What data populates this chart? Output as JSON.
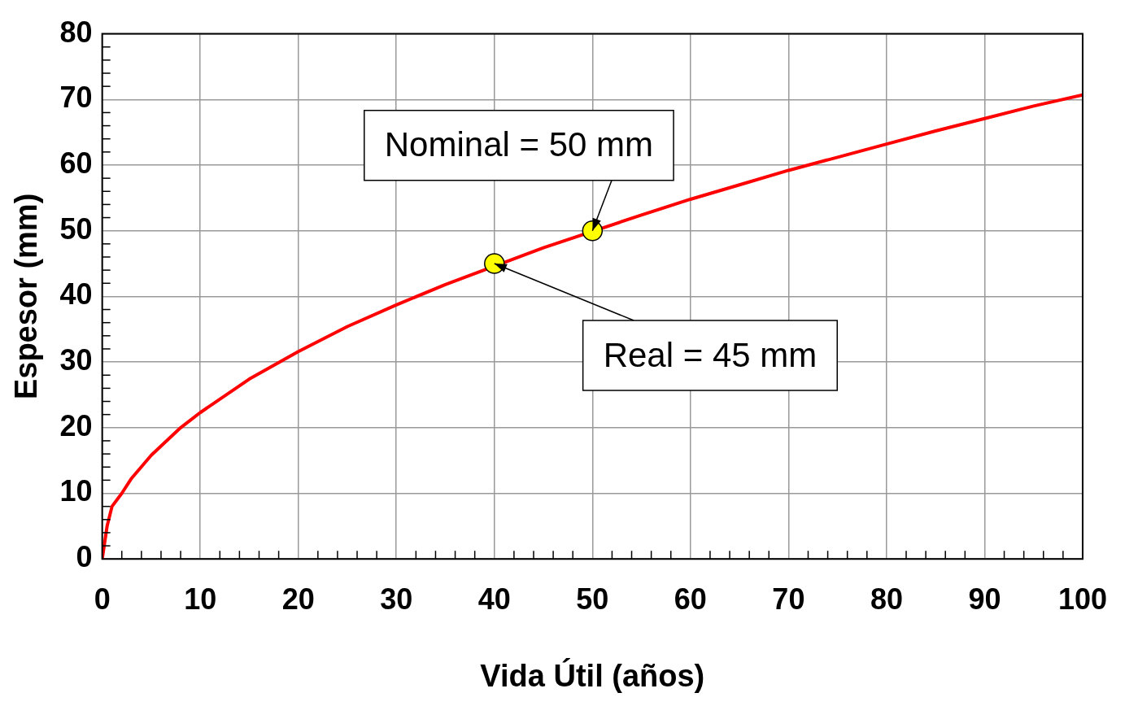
{
  "chart_data": {
    "type": "line",
    "xlabel": "Vida Útil (años)",
    "ylabel": "Espesor (mm)",
    "xlim": [
      0,
      100
    ],
    "xticks": [
      0,
      10,
      20,
      30,
      40,
      50,
      60,
      70,
      80,
      90,
      100
    ],
    "ylim": [
      0,
      80
    ],
    "yticks": [
      0,
      10,
      20,
      30,
      40,
      50,
      60,
      70,
      80
    ],
    "grid": true,
    "legend": false,
    "series": [
      {
        "type": "line",
        "color": "#ff0000",
        "marker": "none",
        "line_style": "solid",
        "x": [
          0,
          0.5,
          1,
          2,
          3,
          5,
          8,
          10,
          15,
          20,
          25,
          30,
          35,
          45,
          55,
          60,
          65,
          70,
          75,
          80,
          85,
          90,
          95,
          100
        ],
        "values": [
          0,
          5,
          8,
          10,
          12.3,
          15.8,
          20,
          22.3,
          27.4,
          31.6,
          35.4,
          38.7,
          41.8,
          47.4,
          52.4,
          54.8,
          57,
          59.2,
          61.2,
          63.2,
          65.2,
          67.1,
          69,
          70.7
        ]
      },
      {
        "type": "scatter",
        "color": "#ffff00",
        "marker": "circle",
        "x": [
          40,
          50
        ],
        "values": [
          45,
          50
        ]
      }
    ],
    "annotations": [
      {
        "text": "Nominal = 50 mm",
        "x": 50,
        "y": 50
      },
      {
        "text": "Real = 45 mm",
        "x": 40,
        "y": 45
      }
    ]
  }
}
